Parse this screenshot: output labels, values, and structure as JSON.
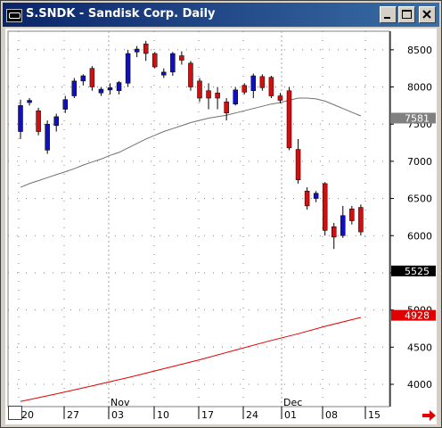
{
  "window": {
    "title": "S.SNDK - Sandisk Corp. Daily"
  },
  "chart_data": {
    "type": "candlestick",
    "title": "S.SNDK - Sandisk Corp. Daily",
    "y_ticks": [
      "8500",
      "8000",
      "7500",
      "7000",
      "6500",
      "6000",
      "5500",
      "5000",
      "4500",
      "4000"
    ],
    "ylim": [
      3700,
      8750
    ],
    "x_ticks": [
      "20",
      "27",
      "03",
      "10",
      "17",
      "24",
      "01",
      "08",
      "15"
    ],
    "month_labels": [
      "Nov",
      "Dec"
    ],
    "candles": [
      {
        "o": 7400,
        "h": 7830,
        "l": 7300,
        "c": 7750,
        "dir": "up"
      },
      {
        "o": 7790,
        "h": 7850,
        "l": 7750,
        "c": 7820,
        "dir": "up"
      },
      {
        "o": 7680,
        "h": 7720,
        "l": 7350,
        "c": 7400,
        "dir": "down"
      },
      {
        "o": 7150,
        "h": 7550,
        "l": 7100,
        "c": 7500,
        "dir": "up"
      },
      {
        "o": 7480,
        "h": 7640,
        "l": 7400,
        "c": 7600,
        "dir": "up"
      },
      {
        "o": 7700,
        "h": 7880,
        "l": 7650,
        "c": 7830,
        "dir": "up"
      },
      {
        "o": 7880,
        "h": 8120,
        "l": 7850,
        "c": 8080,
        "dir": "up"
      },
      {
        "o": 8080,
        "h": 8170,
        "l": 8020,
        "c": 8150,
        "dir": "up"
      },
      {
        "o": 8250,
        "h": 8280,
        "l": 7950,
        "c": 8000,
        "dir": "down"
      },
      {
        "o": 7920,
        "h": 8000,
        "l": 7880,
        "c": 7970,
        "dir": "up"
      },
      {
        "o": 7960,
        "h": 8050,
        "l": 7900,
        "c": 7990,
        "dir": "up"
      },
      {
        "o": 7950,
        "h": 8080,
        "l": 7900,
        "c": 8060,
        "dir": "up"
      },
      {
        "o": 8050,
        "h": 8500,
        "l": 8000,
        "c": 8450,
        "dir": "up"
      },
      {
        "o": 8470,
        "h": 8550,
        "l": 8400,
        "c": 8510,
        "dir": "up"
      },
      {
        "o": 8580,
        "h": 8620,
        "l": 8350,
        "c": 8450,
        "dir": "down"
      },
      {
        "o": 8450,
        "h": 8470,
        "l": 8250,
        "c": 8270,
        "dir": "down"
      },
      {
        "o": 8200,
        "h": 8250,
        "l": 8120,
        "c": 8160,
        "dir": "up"
      },
      {
        "o": 8200,
        "h": 8470,
        "l": 8150,
        "c": 8450,
        "dir": "up"
      },
      {
        "o": 8420,
        "h": 8480,
        "l": 8300,
        "c": 8360,
        "dir": "down"
      },
      {
        "o": 8320,
        "h": 8350,
        "l": 7950,
        "c": 8000,
        "dir": "down"
      },
      {
        "o": 8080,
        "h": 8120,
        "l": 7800,
        "c": 7850,
        "dir": "down"
      },
      {
        "o": 7950,
        "h": 8050,
        "l": 7700,
        "c": 7850,
        "dir": "down"
      },
      {
        "o": 7920,
        "h": 8000,
        "l": 7700,
        "c": 7850,
        "dir": "down"
      },
      {
        "o": 7800,
        "h": 7850,
        "l": 7550,
        "c": 7650,
        "dir": "down"
      },
      {
        "o": 7770,
        "h": 8000,
        "l": 7750,
        "c": 7960,
        "dir": "up"
      },
      {
        "o": 8020,
        "h": 8050,
        "l": 7900,
        "c": 7930,
        "dir": "down"
      },
      {
        "o": 7950,
        "h": 8180,
        "l": 7850,
        "c": 8150,
        "dir": "up"
      },
      {
        "o": 8140,
        "h": 8170,
        "l": 7950,
        "c": 7990,
        "dir": "down"
      },
      {
        "o": 8130,
        "h": 8150,
        "l": 7850,
        "c": 7880,
        "dir": "down"
      },
      {
        "o": 7880,
        "h": 7920,
        "l": 7780,
        "c": 7820,
        "dir": "down"
      },
      {
        "o": 7950,
        "h": 8000,
        "l": 7150,
        "c": 7180,
        "dir": "down"
      },
      {
        "o": 7160,
        "h": 7300,
        "l": 6700,
        "c": 6750,
        "dir": "down"
      },
      {
        "o": 6600,
        "h": 6650,
        "l": 6350,
        "c": 6400,
        "dir": "down"
      },
      {
        "o": 6500,
        "h": 6600,
        "l": 6450,
        "c": 6570,
        "dir": "up"
      },
      {
        "o": 6700,
        "h": 6720,
        "l": 6000,
        "c": 6070,
        "dir": "down"
      },
      {
        "o": 6120,
        "h": 6170,
        "l": 5820,
        "c": 5980,
        "dir": "down"
      },
      {
        "o": 6000,
        "h": 6400,
        "l": 5970,
        "c": 6270,
        "dir": "up"
      },
      {
        "o": 6360,
        "h": 6400,
        "l": 6150,
        "c": 6200,
        "dir": "down"
      },
      {
        "o": 6380,
        "h": 6420,
        "l": 6000,
        "c": 6050,
        "dir": "down"
      }
    ],
    "ma_short": [
      [
        0,
        6650
      ],
      [
        1,
        6700
      ],
      [
        2,
        6740
      ],
      [
        3,
        6780
      ],
      [
        4,
        6820
      ],
      [
        5,
        6860
      ],
      [
        6,
        6900
      ],
      [
        7,
        6950
      ],
      [
        8,
        6990
      ],
      [
        9,
        7030
      ],
      [
        10,
        7080
      ],
      [
        11,
        7120
      ],
      [
        12,
        7180
      ],
      [
        13,
        7240
      ],
      [
        14,
        7300
      ],
      [
        15,
        7350
      ],
      [
        16,
        7400
      ],
      [
        17,
        7440
      ],
      [
        18,
        7480
      ],
      [
        19,
        7520
      ],
      [
        20,
        7550
      ],
      [
        21,
        7580
      ],
      [
        22,
        7600
      ],
      [
        23,
        7620
      ],
      [
        24,
        7650
      ],
      [
        25,
        7680
      ],
      [
        26,
        7710
      ],
      [
        27,
        7740
      ],
      [
        28,
        7770
      ],
      [
        29,
        7790
      ],
      [
        30,
        7820
      ],
      [
        31,
        7850
      ],
      [
        32,
        7850
      ],
      [
        33,
        7840
      ],
      [
        34,
        7810
      ],
      [
        35,
        7760
      ],
      [
        36,
        7710
      ],
      [
        37,
        7660
      ],
      [
        38,
        7610
      ]
    ],
    "ma_long": [
      [
        0,
        3770
      ],
      [
        4,
        3870
      ],
      [
        8,
        3980
      ],
      [
        12,
        4090
      ],
      [
        16,
        4210
      ],
      [
        20,
        4330
      ],
      [
        24,
        4460
      ],
      [
        28,
        4590
      ],
      [
        31,
        4680
      ],
      [
        34,
        4780
      ],
      [
        36,
        4840
      ],
      [
        38,
        4900
      ]
    ],
    "price_labels": [
      {
        "text": "7581",
        "value": 7581,
        "style": "gray"
      },
      {
        "text": "5525",
        "value": 5525,
        "style": "black"
      },
      {
        "text": "4928",
        "value": 4928,
        "style": "red"
      }
    ],
    "colors": {
      "up": "#1010c0",
      "down": "#d01010",
      "ma_short": "#707070",
      "ma_long": "#e00000",
      "grid_dots": "#808080",
      "title_bar": "#0a246a"
    }
  }
}
